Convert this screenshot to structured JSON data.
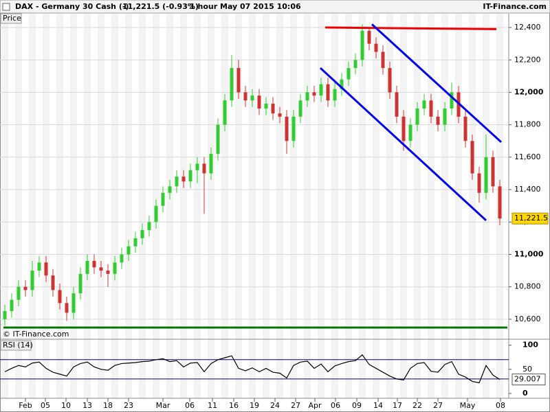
{
  "header": {
    "symbol": "DAX - Germany 30 Cash (-)",
    "quote": "11,221.5 (-0.93%)",
    "interval": "1 hour",
    "timestamp": "May 07 2015 10:06",
    "brand": "IT-Finance.com"
  },
  "chart_data": [
    {
      "type": "candlestick",
      "panel_label": "Price",
      "copyright": "© IT-Finance.com",
      "up_color": "#33cc33",
      "down_color": "#cc3333",
      "x": [
        -3,
        -2,
        -1,
        0,
        1,
        2,
        3,
        4,
        5,
        6,
        7,
        8,
        9,
        10,
        11,
        12,
        13,
        14,
        15,
        16,
        17,
        18,
        19,
        20,
        21,
        22,
        23,
        24,
        25,
        26,
        27,
        28,
        29,
        30,
        31,
        32,
        33,
        34,
        35,
        36,
        37,
        38,
        39,
        40,
        41,
        42,
        43,
        44,
        45,
        46,
        47,
        48,
        49,
        50,
        51,
        52,
        53,
        54,
        55,
        56,
        57,
        58,
        59,
        60,
        61,
        62,
        63,
        64,
        65,
        66,
        67,
        68,
        69
      ],
      "open": [
        10600,
        10650,
        10720,
        10800,
        10780,
        10900,
        10950,
        10870,
        10780,
        10700,
        10640,
        10760,
        10880,
        10960,
        10920,
        10900,
        10880,
        10950,
        11000,
        11050,
        11100,
        11150,
        11200,
        11300,
        11380,
        11420,
        11480,
        11450,
        11520,
        11560,
        11500,
        11620,
        11800,
        11950,
        12150,
        12000,
        11950,
        11980,
        11900,
        11930,
        11870,
        11850,
        11700,
        11850,
        11950,
        12000,
        11980,
        12050,
        11950,
        12020,
        12080,
        12150,
        12200,
        12380,
        12300,
        12250,
        12150,
        12000,
        11850,
        11700,
        11800,
        11900,
        11950,
        11850,
        11800,
        11900,
        12000,
        11850,
        11700,
        11500,
        11380,
        11600,
        11420
      ],
      "high": [
        10690,
        10760,
        10840,
        10840,
        10960,
        10990,
        10990,
        10910,
        10820,
        10740,
        10800,
        10920,
        11000,
        11000,
        10960,
        10940,
        10990,
        11040,
        11090,
        11140,
        11190,
        11240,
        11340,
        11420,
        11460,
        11520,
        11520,
        11560,
        11600,
        11600,
        11660,
        11840,
        11990,
        12230,
        12200,
        12040,
        12020,
        12020,
        11970,
        11970,
        11910,
        11890,
        11890,
        11990,
        12040,
        12040,
        12090,
        12090,
        12060,
        12120,
        12190,
        12240,
        12420,
        12400,
        12340,
        12290,
        12190,
        12040,
        11890,
        11840,
        11940,
        11990,
        11990,
        11890,
        11940,
        12060,
        12040,
        11890,
        11740,
        11540,
        11740,
        11640,
        11460
      ],
      "low": [
        10560,
        10610,
        10680,
        10740,
        10740,
        10860,
        10830,
        10740,
        10660,
        10590,
        10600,
        10720,
        10840,
        10880,
        10860,
        10800,
        10840,
        10910,
        10960,
        11010,
        11060,
        11110,
        11160,
        11260,
        11340,
        11380,
        11410,
        11410,
        11440,
        11250,
        11460,
        11580,
        11760,
        11910,
        11960,
        11910,
        11910,
        11860,
        11860,
        11830,
        11810,
        11620,
        11660,
        11810,
        11910,
        11940,
        11940,
        11910,
        11910,
        11980,
        12040,
        12110,
        12160,
        12260,
        12210,
        12110,
        11960,
        11810,
        11640,
        11660,
        11760,
        11860,
        11810,
        11760,
        11760,
        11860,
        11810,
        11660,
        11460,
        11320,
        11340,
        11380,
        11180
      ],
      "close": [
        10650,
        10720,
        10800,
        10780,
        10900,
        10950,
        10870,
        10780,
        10700,
        10640,
        10760,
        10880,
        10960,
        10920,
        10900,
        10880,
        10950,
        11000,
        11050,
        11100,
        11150,
        11200,
        11300,
        11380,
        11420,
        11480,
        11450,
        11520,
        11560,
        11500,
        11620,
        11800,
        11950,
        12150,
        12000,
        11950,
        11980,
        11900,
        11930,
        11870,
        11850,
        11700,
        11850,
        11950,
        12000,
        11980,
        12050,
        11950,
        12020,
        12080,
        12150,
        12200,
        12380,
        12300,
        12250,
        12150,
        12000,
        11850,
        11700,
        11800,
        11900,
        11950,
        11850,
        11800,
        11900,
        12000,
        11850,
        11700,
        11500,
        11380,
        11600,
        11420,
        11221.5
      ],
      "last_label": "11,221.5",
      "lines": [
        {
          "color": "#ee0000",
          "x": [
            43.6,
            68.5
          ],
          "y": [
            12400,
            12390
          ]
        },
        {
          "color": "#0000ee",
          "x": [
            50.4,
            69.2
          ],
          "y": [
            12420,
            11693
          ]
        },
        {
          "color": "#0000ee",
          "x": [
            42.9,
            67.0
          ],
          "y": [
            12150,
            11210
          ]
        },
        {
          "color": "#007700",
          "x": [
            -3.2,
            70.1
          ],
          "y": [
            10549,
            10549
          ]
        }
      ],
      "xlim": [
        -3.7,
        70.3
      ],
      "xticks": [
        {
          "value": 0,
          "label": "Feb"
        },
        {
          "value": 2.9,
          "label": "05"
        },
        {
          "value": 5.9,
          "label": "10"
        },
        {
          "value": 9,
          "label": "13"
        },
        {
          "value": 12,
          "label": "18"
        },
        {
          "value": 15,
          "label": "23"
        },
        {
          "value": 20,
          "label": "Mar"
        },
        {
          "value": 23.9,
          "label": "06"
        },
        {
          "value": 27.2,
          "label": "11"
        },
        {
          "value": 30.3,
          "label": "16"
        },
        {
          "value": 33.3,
          "label": "19"
        },
        {
          "value": 36.3,
          "label": "24"
        },
        {
          "value": 39.3,
          "label": "27"
        },
        {
          "value": 42.1,
          "label": "Apr"
        },
        {
          "value": 45.1,
          "label": "06"
        },
        {
          "value": 48.2,
          "label": "09"
        },
        {
          "value": 51.3,
          "label": "14"
        },
        {
          "value": 54.1,
          "label": "17"
        },
        {
          "value": 57,
          "label": "22"
        },
        {
          "value": 60,
          "label": "27"
        },
        {
          "value": 64.3,
          "label": "May"
        },
        {
          "value": 69.1,
          "label": "08"
        }
      ],
      "ylim": [
        10481,
        12485
      ],
      "yticks": [
        {
          "value": 10600,
          "label": "10,600"
        },
        {
          "value": 10800,
          "label": "10,800"
        },
        {
          "value": 11000,
          "label": "11,000"
        },
        {
          "value": 11200,
          "label": "11,200"
        },
        {
          "value": 11400,
          "label": "11,400"
        },
        {
          "value": 11600,
          "label": "11,600"
        },
        {
          "value": 11800,
          "label": "11,800"
        },
        {
          "value": 12000,
          "label": "12,000"
        },
        {
          "value": 12200,
          "label": "12,200"
        },
        {
          "value": 12400,
          "label": "12,400"
        }
      ],
      "grid": true
    },
    {
      "type": "line",
      "panel_label": "RSI (14)",
      "color": "#000000",
      "band_color": "#000080",
      "bands": [
        70,
        30
      ],
      "values": [
        45,
        52,
        58,
        55,
        63,
        65,
        52,
        44,
        40,
        36,
        55,
        62,
        65,
        55,
        50,
        48,
        58,
        62,
        63,
        64,
        66,
        67,
        70,
        72,
        66,
        68,
        55,
        63,
        64,
        45,
        62,
        70,
        74,
        78,
        52,
        47,
        53,
        45,
        52,
        44,
        42,
        32,
        58,
        65,
        67,
        52,
        61,
        45,
        57,
        62,
        66,
        68,
        80,
        60,
        52,
        44,
        36,
        30,
        28,
        52,
        62,
        64,
        46,
        44,
        60,
        66,
        40,
        34,
        25,
        22,
        58,
        38,
        29.007
      ],
      "ylim": [
        -10,
        111
      ],
      "yticks": [
        0,
        50,
        100
      ]
    }
  ]
}
